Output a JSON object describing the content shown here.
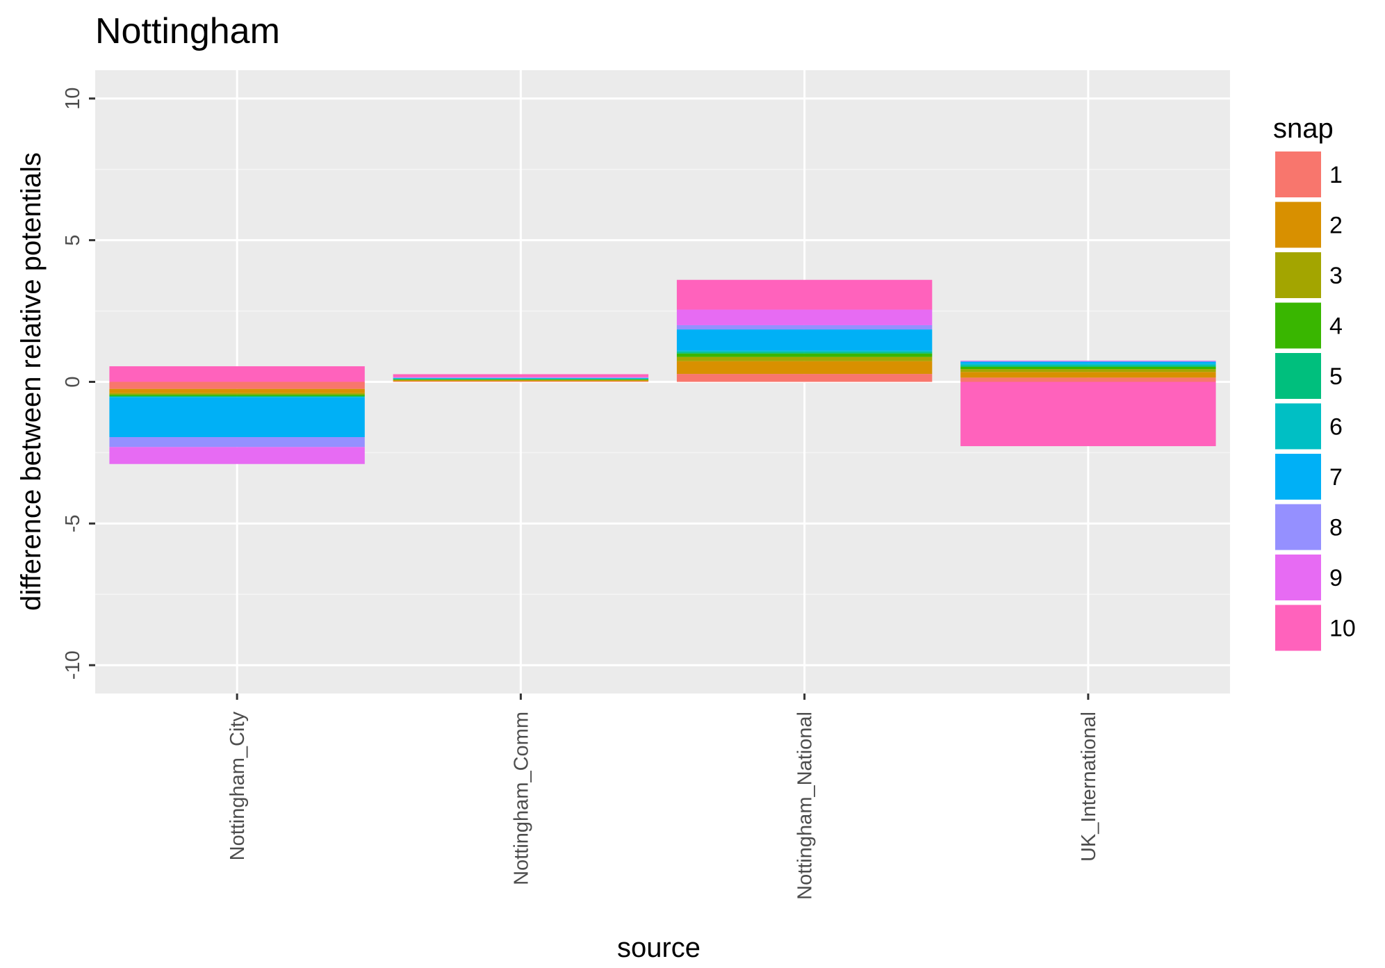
{
  "chart_data": {
    "type": "bar",
    "stacked": true,
    "title": "Nottingham",
    "xlabel": "source",
    "ylabel": "difference between relative potentials",
    "categories": [
      "Nottingham_City",
      "Nottingham_Comm",
      "Nottingham_National",
      "UK_International"
    ],
    "ylim": [
      -11,
      11
    ],
    "yticks": [
      -10,
      -5,
      0,
      5,
      10
    ],
    "ytick_labels": [
      "-10",
      "-5",
      "0",
      "5",
      "10"
    ],
    "grid": true,
    "legend": {
      "title": "snap",
      "position": "right"
    },
    "series": [
      {
        "name": "1",
        "color": "#F8766D",
        "values": [
          -0.25,
          0.02,
          0.28,
          0.15
        ]
      },
      {
        "name": "2",
        "color": "#D89000",
        "values": [
          -0.15,
          0.03,
          0.45,
          0.2
        ]
      },
      {
        "name": "3",
        "color": "#A3A500",
        "values": [
          -0.05,
          0.02,
          0.15,
          0.1
        ]
      },
      {
        "name": "4",
        "color": "#39B600",
        "values": [
          -0.05,
          0.02,
          0.12,
          0.08
        ]
      },
      {
        "name": "5",
        "color": "#00BF7D",
        "values": [
          -0.03,
          0.02,
          0.05,
          0.05
        ]
      },
      {
        "name": "6",
        "color": "#00BFC4",
        "values": [
          -0.02,
          0.01,
          0.05,
          0.05
        ]
      },
      {
        "name": "7",
        "color": "#00B0F6",
        "values": [
          -1.4,
          0.02,
          0.75,
          0.08
        ]
      },
      {
        "name": "8",
        "color": "#9590FF",
        "values": [
          -0.35,
          0.01,
          0.15,
          0.02
        ]
      },
      {
        "name": "9",
        "color": "#E76BF3",
        "values": [
          -0.6,
          0.02,
          0.55,
          0.02
        ]
      },
      {
        "name": "10",
        "color": "#FF62BC",
        "values": [
          0.55,
          0.1,
          1.05,
          -2.27
        ]
      }
    ]
  },
  "colors": {
    "panel_background": "#EBEBEB",
    "grid_major": "#FFFFFF",
    "grid_minor": "#F5F5F5"
  }
}
